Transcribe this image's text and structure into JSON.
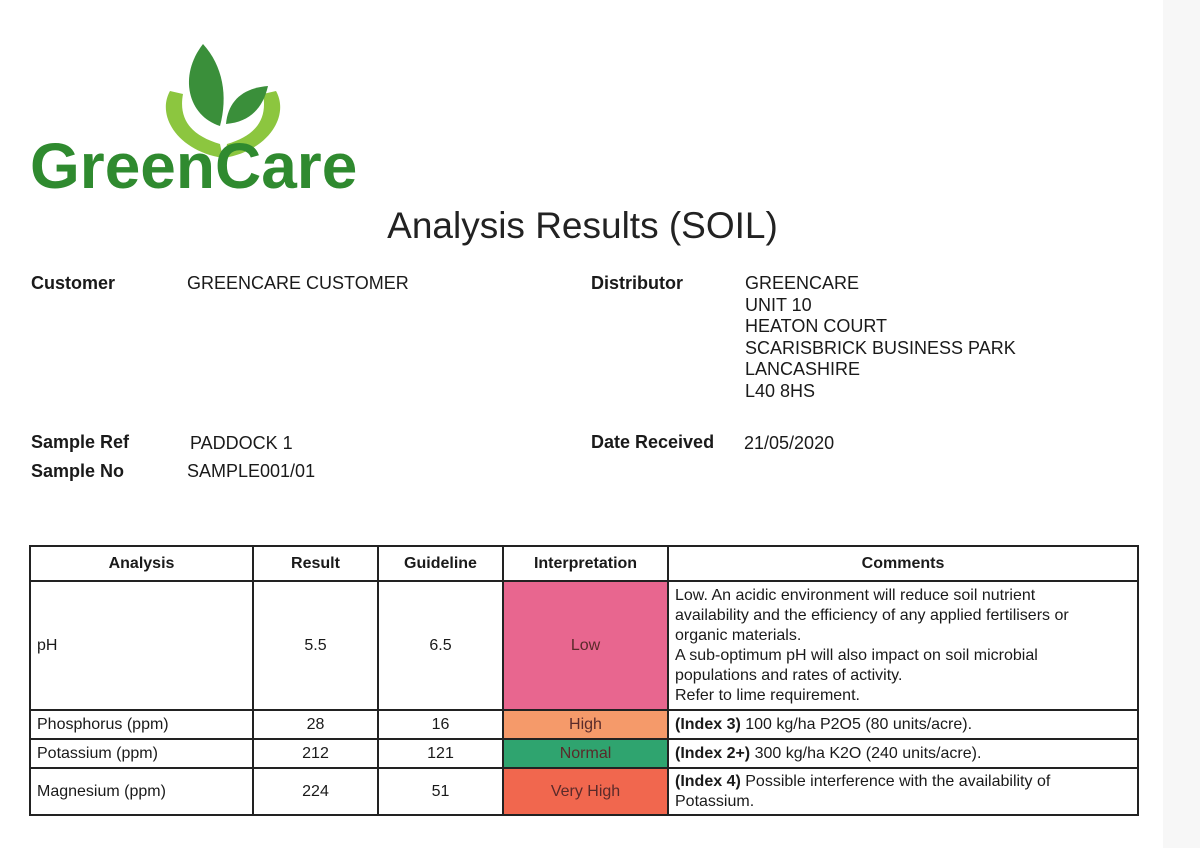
{
  "logo": {
    "text": "GreenCare",
    "colors": {
      "dark_green": "#2f8a2f",
      "light_green": "#8cc63f"
    }
  },
  "title": "Analysis Results  (SOIL)",
  "customer": {
    "label": "Customer",
    "value": "GREENCARE CUSTOMER"
  },
  "distributor": {
    "label": "Distributor",
    "address": [
      "GREENCARE",
      "UNIT 10",
      "HEATON COURT",
      "SCARISBRICK BUSINESS PARK",
      "LANCASHIRE",
      "L40 8HS"
    ]
  },
  "sample_ref": {
    "label": "Sample Ref",
    "value": "PADDOCK 1"
  },
  "sample_no": {
    "label": "Sample No",
    "value": "SAMPLE001/01"
  },
  "date_received": {
    "label": "Date Received",
    "value": "21/05/2020"
  },
  "table": {
    "headers": [
      "Analysis",
      "Result",
      "Guideline",
      "Interpretation",
      "Comments"
    ],
    "rows": [
      {
        "analysis": "pH",
        "result": "5.5",
        "guideline": "6.5",
        "interpretation": "Low",
        "color": "#e8668f",
        "comment_bold": "",
        "comment_lines": [
          "Low. An acidic environment will reduce soil nutrient",
          "availability and the efficiency of any applied fertilisers or",
          "organic materials.",
          "A sub-optimum pH will also impact on soil microbial",
          "populations and rates of activity.",
          "Refer to lime requirement."
        ]
      },
      {
        "analysis": "Phosphorus (ppm)",
        "result": "28",
        "guideline": "16",
        "interpretation": "High",
        "color": "#f59a6a",
        "comment_bold": "(Index 3)",
        "comment_lines": [
          " 100 kg/ha P2O5 (80 units/acre)."
        ]
      },
      {
        "analysis": "Potassium (ppm)",
        "result": "212",
        "guideline": "121",
        "interpretation": "Normal",
        "color": "#2fa46f",
        "comment_bold": "(Index 2+)",
        "comment_lines": [
          " 300 kg/ha K2O (240 units/acre)."
        ]
      },
      {
        "analysis": "Magnesium (ppm)",
        "result": "224",
        "guideline": "51",
        "interpretation": "Very High",
        "color": "#f1674e",
        "comment_bold": "(Index 4)",
        "comment_lines": [
          " Possible interference with the availability of",
          "Potassium."
        ]
      }
    ]
  }
}
